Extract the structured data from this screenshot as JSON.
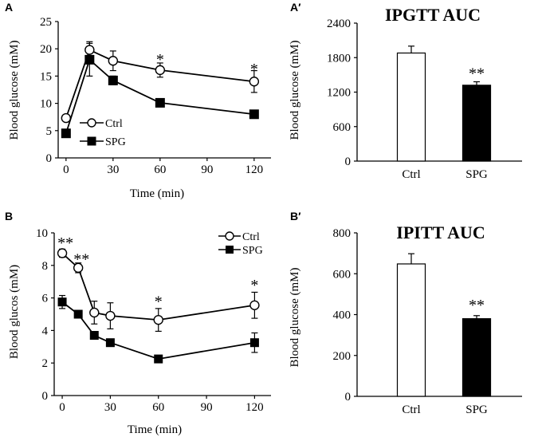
{
  "chart_data": [
    {
      "id": "A",
      "panel_label": "A",
      "type": "line",
      "title": "",
      "xlabel": "Time (min)",
      "ylabel": "Blood glucose (mM)",
      "xlim": [
        -5,
        130
      ],
      "ylim": [
        0,
        25
      ],
      "x_ticks": [
        0,
        30,
        60,
        90,
        120
      ],
      "y_ticks": [
        0,
        5,
        10,
        15,
        20,
        25
      ],
      "x_tick_labels": [
        "0",
        "30",
        "60",
        "90",
        "120"
      ],
      "y_tick_labels": [
        "0",
        "5",
        "10",
        "15",
        "20",
        "25"
      ],
      "grid": false,
      "legend_position": "left-bottom",
      "series": [
        {
          "name": "Ctrl",
          "marker": "open-circle",
          "x": [
            0,
            15,
            30,
            60,
            120
          ],
          "values": [
            7.3,
            19.8,
            17.8,
            16.1,
            14.0
          ],
          "errors": [
            0.5,
            1.5,
            1.8,
            1.3,
            2.0
          ]
        },
        {
          "name": "SPG",
          "marker": "filled-square",
          "x": [
            0,
            15,
            30,
            60,
            120
          ],
          "values": [
            4.5,
            18.0,
            14.2,
            10.1,
            8.0
          ],
          "errors": [
            0.4,
            3.0,
            0.8,
            0.7,
            0.6
          ]
        }
      ],
      "annotations": [
        {
          "text": "*",
          "x": 60,
          "y": 18.6
        },
        {
          "text": "*",
          "x": 120,
          "y": 16.8
        }
      ]
    },
    {
      "id": "A2",
      "panel_label": "A′",
      "type": "bar",
      "title": "IPGTT AUC",
      "xlabel": "",
      "ylabel": "Blood glucose (mM)",
      "ylim": [
        0,
        2400
      ],
      "y_ticks": [
        0,
        600,
        1200,
        1800,
        2400
      ],
      "y_tick_labels": [
        "0",
        "600",
        "1200",
        "1800",
        "2400"
      ],
      "categories": [
        "Ctrl",
        "SPG"
      ],
      "values": [
        1880,
        1320
      ],
      "errors": [
        120,
        60
      ],
      "bar_colors": [
        "#ffffff",
        "#000000"
      ],
      "annotations": [
        {
          "text": "**",
          "category": "SPG",
          "y": 1520
        }
      ]
    },
    {
      "id": "B",
      "panel_label": "B",
      "type": "line",
      "title": "",
      "xlabel": "Time (min)",
      "ylabel": "Blood glucos (mM)",
      "xlim": [
        -5,
        128
      ],
      "ylim": [
        0,
        10
      ],
      "x_ticks": [
        0,
        30,
        60,
        90,
        120
      ],
      "y_ticks": [
        0,
        2,
        4,
        6,
        8,
        10
      ],
      "x_tick_labels": [
        "0",
        "30",
        "60",
        "90",
        "120"
      ],
      "y_tick_labels": [
        "0",
        "2",
        "4",
        "6",
        "8",
        "10"
      ],
      "grid": false,
      "legend_position": "top-right",
      "series": [
        {
          "name": "Ctrl",
          "marker": "open-circle",
          "x": [
            0,
            10,
            20,
            30,
            60,
            120
          ],
          "values": [
            8.75,
            7.85,
            5.1,
            4.9,
            4.65,
            5.55
          ],
          "errors": [
            0.25,
            0.3,
            0.7,
            0.8,
            0.7,
            0.8
          ]
        },
        {
          "name": "SPG",
          "marker": "filled-square",
          "x": [
            0,
            10,
            20,
            30,
            60,
            120
          ],
          "values": [
            5.75,
            5.0,
            3.7,
            3.25,
            2.25,
            3.25
          ],
          "errors": [
            0.4,
            0.2,
            0.2,
            0.2,
            0.15,
            0.6
          ]
        }
      ],
      "annotations": [
        {
          "text": "**",
          "x": 2,
          "y": 9.55
        },
        {
          "text": "**",
          "x": 12,
          "y": 8.55
        },
        {
          "text": "*",
          "x": 60,
          "y": 5.95
        },
        {
          "text": "*",
          "x": 120,
          "y": 6.95
        }
      ]
    },
    {
      "id": "B2",
      "panel_label": "B′",
      "type": "bar",
      "title": "IPITT AUC",
      "xlabel": "",
      "ylabel": "Blood glucose (mM)",
      "ylim": [
        0,
        800
      ],
      "y_ticks": [
        0,
        200,
        400,
        600,
        800
      ],
      "y_tick_labels": [
        "0",
        "200",
        "400",
        "600",
        "800"
      ],
      "categories": [
        "Ctrl",
        "SPG"
      ],
      "values": [
        648,
        380
      ],
      "errors": [
        50,
        15
      ],
      "bar_colors": [
        "#ffffff",
        "#000000"
      ],
      "annotations": [
        {
          "text": "**",
          "category": "SPG",
          "y": 445
        }
      ]
    }
  ]
}
